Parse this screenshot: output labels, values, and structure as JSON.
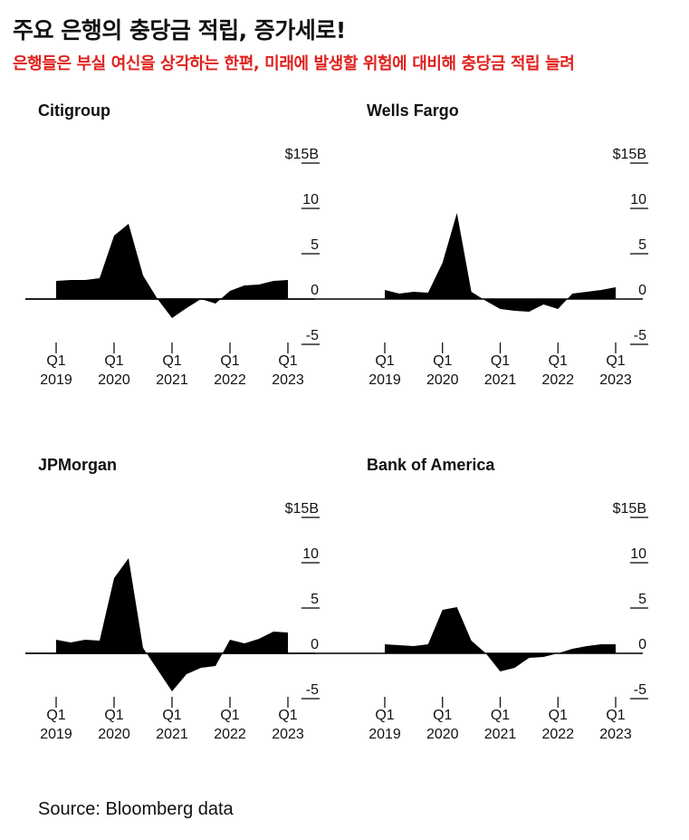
{
  "title": "주요 은행의 충당금 적립, 증가세로!",
  "subtitle": "은행들은 부실 여신을 상각하는 한편, 미래에 발생할 위험에 대비해 충당금 적립 늘려",
  "source": "Source: Bloomberg data",
  "colors": {
    "area": "#000000",
    "subtitle": "#e0211d",
    "text": "#111111"
  },
  "chart_data": [
    {
      "type": "area",
      "title": "Citigroup",
      "ylim": [
        -5,
        15
      ],
      "yticks": [
        "$15B",
        "10",
        "5",
        "0",
        "-5"
      ],
      "xticks": [
        {
          "q": "Q1",
          "year": "2019"
        },
        {
          "q": "Q1",
          "year": "2020"
        },
        {
          "q": "Q1",
          "year": "2021"
        },
        {
          "q": "Q1",
          "year": "2022"
        },
        {
          "q": "Q1",
          "year": "2023"
        }
      ],
      "values": [
        2.0,
        2.1,
        2.1,
        2.3,
        7.0,
        8.3,
        2.6,
        0.0,
        -2.1,
        -1.0,
        0.0,
        -0.5,
        0.9,
        1.5,
        1.6,
        2.0,
        2.1
      ]
    },
    {
      "type": "area",
      "title": "Wells Fargo",
      "ylim": [
        -5,
        15
      ],
      "yticks": [
        "$15B",
        "10",
        "5",
        "0",
        "-5"
      ],
      "xticks": [
        {
          "q": "Q1",
          "year": "2019"
        },
        {
          "q": "Q1",
          "year": "2020"
        },
        {
          "q": "Q1",
          "year": "2021"
        },
        {
          "q": "Q1",
          "year": "2022"
        },
        {
          "q": "Q1",
          "year": "2023"
        }
      ],
      "values": [
        1.0,
        0.6,
        0.8,
        0.7,
        4.0,
        9.5,
        0.8,
        -0.2,
        -1.1,
        -1.3,
        -1.4,
        -0.6,
        -1.1,
        0.6,
        0.8,
        1.0,
        1.3
      ]
    },
    {
      "type": "area",
      "title": "JPMorgan",
      "ylim": [
        -5,
        15
      ],
      "yticks": [
        "$15B",
        "10",
        "5",
        "0",
        "-5"
      ],
      "xticks": [
        {
          "q": "Q1",
          "year": "2019"
        },
        {
          "q": "Q1",
          "year": "2020"
        },
        {
          "q": "Q1",
          "year": "2021"
        },
        {
          "q": "Q1",
          "year": "2022"
        },
        {
          "q": "Q1",
          "year": "2023"
        }
      ],
      "values": [
        1.5,
        1.2,
        1.5,
        1.4,
        8.3,
        10.5,
        0.6,
        -1.8,
        -4.2,
        -2.3,
        -1.6,
        -1.4,
        1.5,
        1.1,
        1.6,
        2.4,
        2.3
      ]
    },
    {
      "type": "area",
      "title": "Bank of America",
      "ylim": [
        -5,
        15
      ],
      "yticks": [
        "$15B",
        "10",
        "5",
        "0",
        "-5"
      ],
      "xticks": [
        {
          "q": "Q1",
          "year": "2019"
        },
        {
          "q": "Q1",
          "year": "2020"
        },
        {
          "q": "Q1",
          "year": "2021"
        },
        {
          "q": "Q1",
          "year": "2022"
        },
        {
          "q": "Q1",
          "year": "2023"
        }
      ],
      "values": [
        1.0,
        0.9,
        0.8,
        1.0,
        4.8,
        5.1,
        1.4,
        0.0,
        -2.0,
        -1.6,
        -0.5,
        -0.4,
        0.0,
        0.5,
        0.8,
        1.0,
        1.0
      ]
    }
  ]
}
